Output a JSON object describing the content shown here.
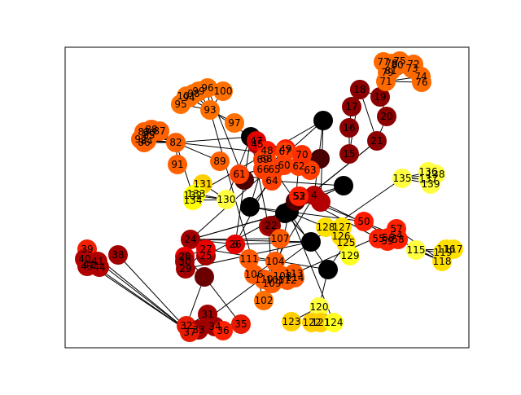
{
  "graph": {
    "edge_color": "#000000",
    "colormap": "hot",
    "nodes": [
      {
        "label": "",
        "color": "#000000"
      },
      {
        "label": "",
        "color": "#000000"
      },
      {
        "label": "",
        "color": "#000000"
      },
      {
        "label": "",
        "color": "#000000"
      },
      {
        "label": "",
        "color": "#000000"
      },
      {
        "label": "",
        "color": "#000000"
      },
      {
        "label": "",
        "color": "#000000"
      },
      {
        "label": "",
        "color": "#000000"
      },
      {
        "label": "",
        "color": "#4a0000"
      },
      {
        "label": "",
        "color": "#4a0000"
      },
      {
        "label": "",
        "color": "#6a0000"
      },
      {
        "label": "",
        "color": "#4a0000"
      },
      {
        "label": "",
        "color": "#8b0000"
      },
      {
        "label": "6",
        "color": "#cc1a00"
      },
      {
        "label": "",
        "color": "#b30000"
      },
      {
        "label": "4",
        "color": "#b30000"
      },
      {
        "label": "52",
        "color": "#c40000"
      },
      {
        "label": "",
        "color": "#b30000"
      },
      {
        "label": "15",
        "color": "#8b0000"
      },
      {
        "label": "16",
        "color": "#8b0000"
      },
      {
        "label": "17",
        "color": "#8b0000"
      },
      {
        "label": "18",
        "color": "#8b0000"
      },
      {
        "label": "19",
        "color": "#8b0000"
      },
      {
        "label": "20",
        "color": "#8b0000"
      },
      {
        "label": "21",
        "color": "#8b0000"
      },
      {
        "label": "22",
        "color": "#8b0000"
      },
      {
        "label": "24",
        "color": "#a10000"
      },
      {
        "label": "25",
        "color": "#a10000"
      },
      {
        "label": "26",
        "color": "#e60000"
      },
      {
        "label": "27",
        "color": "#e60000"
      },
      {
        "label": "28",
        "color": "#e60000"
      },
      {
        "label": "29",
        "color": "#a10000"
      },
      {
        "label": "30",
        "color": "#a10000"
      },
      {
        "label": "31",
        "color": "#a10000"
      },
      {
        "label": "32",
        "color": "#e61a00"
      },
      {
        "label": "33",
        "color": "#a10000"
      },
      {
        "label": "34",
        "color": "#a10000"
      },
      {
        "label": "35",
        "color": "#e61a00"
      },
      {
        "label": "36",
        "color": "#ff2000"
      },
      {
        "label": "37",
        "color": "#e61a00"
      },
      {
        "label": "38",
        "color": "#a10000"
      },
      {
        "label": "39",
        "color": "#f02000"
      },
      {
        "label": "40",
        "color": "#b00000"
      },
      {
        "label": "41",
        "color": "#b00000"
      },
      {
        "label": "42",
        "color": "#b00000"
      },
      {
        "label": "43",
        "color": "#b00000"
      },
      {
        "label": "44",
        "color": "#b00000"
      },
      {
        "label": "45",
        "color": "#b00000"
      },
      {
        "label": "47",
        "color": "#e00000"
      },
      {
        "label": "48",
        "color": "#ff1a00"
      },
      {
        "label": "49",
        "color": "#ff1a00"
      },
      {
        "label": "50",
        "color": "#ff1a00"
      },
      {
        "label": "53",
        "color": "#ff2000"
      },
      {
        "label": "54",
        "color": "#ff2000"
      },
      {
        "label": "55",
        "color": "#ff2000"
      },
      {
        "label": "56",
        "color": "#ff2000"
      },
      {
        "label": "57",
        "color": "#ff2000"
      },
      {
        "label": "58",
        "color": "#ff2000"
      },
      {
        "label": "59",
        "color": "#ff2000"
      },
      {
        "label": "60",
        "color": "#ff4000"
      },
      {
        "label": "61",
        "color": "#ff4000"
      },
      {
        "label": "62",
        "color": "#ff4000"
      },
      {
        "label": "63",
        "color": "#ff4000"
      },
      {
        "label": "64",
        "color": "#ff4000"
      },
      {
        "label": "65",
        "color": "#ff4000"
      },
      {
        "label": "66",
        "color": "#ff4000"
      },
      {
        "label": "67",
        "color": "#ff4000"
      },
      {
        "label": "68",
        "color": "#ff4000"
      },
      {
        "label": "69",
        "color": "#ff4000"
      },
      {
        "label": "70",
        "color": "#ff3000"
      },
      {
        "label": "71",
        "color": "#ff6a00"
      },
      {
        "label": "72",
        "color": "#ff6a00"
      },
      {
        "label": "73",
        "color": "#ff6a00"
      },
      {
        "label": "74",
        "color": "#ff6a00"
      },
      {
        "label": "75",
        "color": "#ff6a00"
      },
      {
        "label": "76",
        "color": "#ff6a00"
      },
      {
        "label": "77",
        "color": "#ff6a00"
      },
      {
        "label": "78",
        "color": "#ff6a00"
      },
      {
        "label": "79",
        "color": "#ff6a00"
      },
      {
        "label": "80",
        "color": "#ff6a00"
      },
      {
        "label": "81",
        "color": "#ff6a00"
      },
      {
        "label": "82",
        "color": "#ff6000"
      },
      {
        "label": "83",
        "color": "#ff6000"
      },
      {
        "label": "84",
        "color": "#ff6000"
      },
      {
        "label": "85",
        "color": "#ff6000"
      },
      {
        "label": "86",
        "color": "#ff6000"
      },
      {
        "label": "87",
        "color": "#ff6000"
      },
      {
        "label": "88",
        "color": "#ff6000"
      },
      {
        "label": "89",
        "color": "#ff6000"
      },
      {
        "label": "90",
        "color": "#ff6000"
      },
      {
        "label": "91",
        "color": "#ff6000"
      },
      {
        "label": "92",
        "color": "#ff6000"
      },
      {
        "label": "93",
        "color": "#ff7000"
      },
      {
        "label": "94",
        "color": "#ff7000"
      },
      {
        "label": "95",
        "color": "#ff7000"
      },
      {
        "label": "96",
        "color": "#ff7000"
      },
      {
        "label": "97",
        "color": "#ff7000"
      },
      {
        "label": "98",
        "color": "#ff7000"
      },
      {
        "label": "99",
        "color": "#ff7000"
      },
      {
        "label": "100",
        "color": "#ff7000"
      },
      {
        "label": "101",
        "color": "#ff7000"
      },
      {
        "label": "102",
        "color": "#ff7000"
      },
      {
        "label": "104",
        "color": "#ff5a00"
      },
      {
        "label": "105",
        "color": "#ff5a00"
      },
      {
        "label": "106",
        "color": "#ff5a00"
      },
      {
        "label": "107",
        "color": "#ff5a00"
      },
      {
        "label": "108",
        "color": "#ff5a00"
      },
      {
        "label": "109",
        "color": "#ff5a00"
      },
      {
        "label": "110",
        "color": "#ff5a00"
      },
      {
        "label": "111",
        "color": "#ff5a00"
      },
      {
        "label": "112",
        "color": "#ff5a00"
      },
      {
        "label": "113",
        "color": "#ff5a00"
      },
      {
        "label": "114",
        "color": "#ff5a00"
      },
      {
        "label": "115",
        "color": "#ffff40"
      },
      {
        "label": "116",
        "color": "#ffe000"
      },
      {
        "label": "117",
        "color": "#ffe000"
      },
      {
        "label": "118",
        "color": "#ffe000"
      },
      {
        "label": "119",
        "color": "#ffe000"
      },
      {
        "label": "120",
        "color": "#ffff40"
      },
      {
        "label": "121",
        "color": "#ffd000"
      },
      {
        "label": "122",
        "color": "#ffd000"
      },
      {
        "label": "123",
        "color": "#ffd000"
      },
      {
        "label": "124",
        "color": "#ffff20"
      },
      {
        "label": "125",
        "color": "#ffe000"
      },
      {
        "label": "126",
        "color": "#ffe000"
      },
      {
        "label": "127",
        "color": "#ffe000"
      },
      {
        "label": "128",
        "color": "#ffe000"
      },
      {
        "label": "129",
        "color": "#ffff20"
      },
      {
        "label": "130",
        "color": "#ffff40"
      },
      {
        "label": "131",
        "color": "#ffd000"
      },
      {
        "label": "132",
        "color": "#ffff00"
      },
      {
        "label": "133",
        "color": "#ffff00"
      },
      {
        "label": "134",
        "color": "#ffff00"
      },
      {
        "label": "135",
        "color": "#ffff40"
      },
      {
        "label": "136",
        "color": "#ffff40"
      },
      {
        "label": "137",
        "color": "#ffff40"
      },
      {
        "label": "138",
        "color": "#ffff40"
      },
      {
        "label": "139",
        "color": "#ffff40"
      }
    ],
    "edges": [
      [
        0,
        26
      ],
      [
        0,
        2
      ],
      [
        0,
        1
      ],
      [
        0,
        5
      ],
      [
        0,
        4
      ],
      [
        0,
        27
      ],
      [
        1,
        5
      ],
      [
        1,
        4
      ],
      [
        1,
        3
      ],
      [
        1,
        24
      ],
      [
        1,
        51
      ],
      [
        1,
        122
      ],
      [
        1,
        126
      ],
      [
        1,
        26
      ],
      [
        1,
        103
      ],
      [
        2,
        39
      ],
      [
        2,
        26
      ],
      [
        2,
        31
      ],
      [
        2,
        28
      ],
      [
        3,
        29
      ],
      [
        3,
        123
      ],
      [
        4,
        9
      ],
      [
        4,
        63
      ],
      [
        5,
        49
      ],
      [
        5,
        59
      ],
      [
        6,
        14
      ],
      [
        6,
        13
      ],
      [
        7,
        17
      ],
      [
        7,
        131
      ],
      [
        7,
        26
      ],
      [
        8,
        48
      ],
      [
        8,
        60
      ],
      [
        8,
        81
      ],
      [
        9,
        16
      ],
      [
        9,
        61
      ],
      [
        9,
        67
      ],
      [
        10,
        37
      ],
      [
        10,
        30
      ],
      [
        11,
        95
      ],
      [
        12,
        18
      ],
      [
        12,
        24
      ],
      [
        15,
        17
      ],
      [
        15,
        52
      ],
      [
        15,
        7
      ],
      [
        17,
        116
      ],
      [
        17,
        52
      ],
      [
        18,
        19
      ],
      [
        19,
        20
      ],
      [
        20,
        21
      ],
      [
        21,
        22
      ],
      [
        22,
        23
      ],
      [
        23,
        24
      ],
      [
        24,
        25
      ],
      [
        26,
        28
      ],
      [
        26,
        105
      ],
      [
        29,
        30
      ],
      [
        29,
        31
      ],
      [
        34,
        35
      ],
      [
        34,
        33
      ],
      [
        34,
        36
      ],
      [
        34,
        37
      ],
      [
        34,
        10
      ],
      [
        35,
        36
      ],
      [
        35,
        33
      ],
      [
        37,
        38
      ],
      [
        34,
        38
      ],
      [
        38,
        33
      ],
      [
        39,
        42
      ],
      [
        39,
        43
      ],
      [
        39,
        44
      ],
      [
        39,
        40
      ],
      [
        39,
        41
      ],
      [
        47,
        48
      ],
      [
        47,
        50
      ],
      [
        48,
        50
      ],
      [
        49,
        50
      ],
      [
        52,
        53
      ],
      [
        52,
        54
      ],
      [
        53,
        55
      ],
      [
        53,
        56
      ],
      [
        53,
        57
      ],
      [
        53,
        58
      ],
      [
        54,
        58
      ],
      [
        56,
        111
      ],
      [
        56,
        116
      ],
      [
        59,
        60
      ],
      [
        59,
        62
      ],
      [
        60,
        63
      ],
      [
        61,
        62
      ],
      [
        61,
        64
      ],
      [
        62,
        66
      ],
      [
        63,
        64
      ],
      [
        63,
        65
      ],
      [
        64,
        68
      ],
      [
        65,
        66
      ],
      [
        64,
        13
      ],
      [
        67,
        68
      ],
      [
        70,
        71
      ],
      [
        70,
        72
      ],
      [
        70,
        73
      ],
      [
        70,
        74
      ],
      [
        70,
        75
      ],
      [
        70,
        76
      ],
      [
        70,
        77
      ],
      [
        70,
        78
      ],
      [
        70,
        79
      ],
      [
        70,
        80
      ],
      [
        81,
        82
      ],
      [
        81,
        83
      ],
      [
        81,
        84
      ],
      [
        81,
        85
      ],
      [
        81,
        86
      ],
      [
        81,
        87
      ],
      [
        81,
        88
      ],
      [
        81,
        89
      ],
      [
        81,
        90
      ],
      [
        81,
        91
      ],
      [
        81,
        6
      ],
      [
        81,
        130
      ],
      [
        92,
        93
      ],
      [
        92,
        94
      ],
      [
        92,
        95
      ],
      [
        92,
        96
      ],
      [
        92,
        97
      ],
      [
        92,
        98
      ],
      [
        92,
        99
      ],
      [
        92,
        100
      ],
      [
        92,
        101
      ],
      [
        92,
        48
      ],
      [
        102,
        103
      ],
      [
        102,
        104
      ],
      [
        102,
        105
      ],
      [
        102,
        106
      ],
      [
        102,
        107
      ],
      [
        102,
        108
      ],
      [
        102,
        109
      ],
      [
        102,
        110
      ],
      [
        102,
        111
      ],
      [
        102,
        112
      ],
      [
        102,
        15
      ],
      [
        107,
        14
      ],
      [
        113,
        114
      ],
      [
        113,
        115
      ],
      [
        113,
        116
      ],
      [
        113,
        117
      ],
      [
        118,
        119
      ],
      [
        118,
        120
      ],
      [
        118,
        121
      ],
      [
        118,
        122
      ],
      [
        118,
        3
      ],
      [
        123,
        124
      ],
      [
        123,
        125
      ],
      [
        123,
        126
      ],
      [
        123,
        127
      ],
      [
        128,
        6
      ],
      [
        128,
        129
      ],
      [
        128,
        130
      ],
      [
        128,
        131
      ],
      [
        128,
        132
      ],
      [
        133,
        134
      ],
      [
        133,
        135
      ],
      [
        133,
        136
      ],
      [
        133,
        137
      ],
      [
        133,
        2
      ]
    ]
  }
}
